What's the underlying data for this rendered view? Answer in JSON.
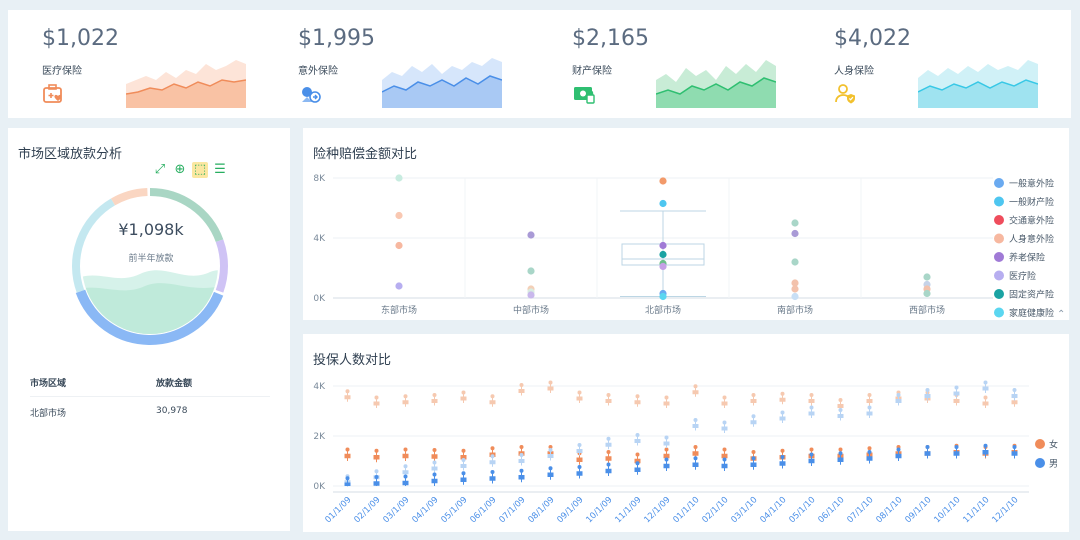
{
  "kpis": [
    {
      "value": "$1,022",
      "label": "医疗保险",
      "icon": "medical-kit-icon",
      "color": "#f08c5a"
    },
    {
      "value": "$1,995",
      "label": "意外保险",
      "icon": "accident-icon",
      "color": "#4a8fe8"
    },
    {
      "value": "$2,165",
      "label": "财产保险",
      "icon": "property-icon",
      "color": "#2fbf71"
    },
    {
      "value": "$4,022",
      "label": "人身保险",
      "icon": "person-shield-icon",
      "color": "#f2c12e"
    }
  ],
  "left_panel": {
    "title": "市场区域放款分析",
    "toolbar": [
      {
        "icon": "fullscreen-icon"
      },
      {
        "icon": "zoom-in-icon"
      },
      {
        "icon": "select-icon",
        "active": true
      },
      {
        "icon": "list-icon"
      }
    ],
    "donut_value": "¥1,098k",
    "donut_sub": "前半年放款",
    "donut_ratio": 0.56,
    "table": {
      "headers": [
        "市场区域",
        "放款金额"
      ],
      "rows": [
        [
          "北部市场",
          "30,978"
        ]
      ]
    }
  },
  "chart_data": [
    {
      "id": "claims",
      "type": "scatter",
      "title": "险种赔偿金额对比",
      "categories": [
        "东部市场",
        "中部市场",
        "北部市场",
        "南部市场",
        "西部市场"
      ],
      "ylim": [
        0,
        8000
      ],
      "yticks": [
        {
          "v": 0,
          "l": "0K"
        },
        {
          "v": 4000,
          "l": "4K"
        },
        {
          "v": 8000,
          "l": "8K"
        }
      ],
      "series": [
        {
          "name": "一般意外险",
          "color": "#6aaaf0"
        },
        {
          "name": "一般财产险",
          "color": "#4ec6f0"
        },
        {
          "name": "交通意外险",
          "color": "#ef4d5c"
        },
        {
          "name": "人身意外险",
          "color": "#f7b8a0"
        },
        {
          "name": "养老保险",
          "color": "#a07ad6"
        },
        {
          "name": "医疗险",
          "color": "#b7aef0"
        },
        {
          "name": "固定资产险",
          "color": "#1aa3a3"
        },
        {
          "name": "家庭健康险",
          "color": "#5bd6f0"
        }
      ],
      "points": [
        {
          "cat": 0,
          "y": 8000,
          "color": "#c8ece0"
        },
        {
          "cat": 0,
          "y": 5500,
          "color": "#f9c8b2"
        },
        {
          "cat": 0,
          "y": 3500,
          "color": "#f7b8a0"
        },
        {
          "cat": 0,
          "y": 800,
          "color": "#b7aef0"
        },
        {
          "cat": 1,
          "y": 4200,
          "color": "#a99ad6"
        },
        {
          "cat": 1,
          "y": 1800,
          "color": "#a9d6c8"
        },
        {
          "cat": 1,
          "y": 600,
          "color": "#f3d0b8"
        },
        {
          "cat": 1,
          "y": 400,
          "color": "#d8ece2"
        },
        {
          "cat": 1,
          "y": 200,
          "color": "#c9b8ec"
        },
        {
          "cat": 2,
          "y": 7800,
          "color": "#f29a6a"
        },
        {
          "cat": 2,
          "y": 6300,
          "color": "#4ec6f0"
        },
        {
          "cat": 2,
          "y": 3500,
          "color": "#a07ad6"
        },
        {
          "cat": 2,
          "y": 2900,
          "color": "#1aa3a3"
        },
        {
          "cat": 2,
          "y": 2300,
          "color": "#6dbf8c"
        },
        {
          "cat": 2,
          "y": 2100,
          "color": "#c6a0e6"
        },
        {
          "cat": 2,
          "y": 300,
          "color": "#6aaaf0"
        },
        {
          "cat": 2,
          "y": 100,
          "color": "#5bd6f0"
        },
        {
          "cat": 3,
          "y": 5000,
          "color": "#a9d6c8"
        },
        {
          "cat": 3,
          "y": 4300,
          "color": "#a99ad6"
        },
        {
          "cat": 3,
          "y": 2400,
          "color": "#a9d6c8"
        },
        {
          "cat": 3,
          "y": 1000,
          "color": "#f3c2ac"
        },
        {
          "cat": 3,
          "y": 600,
          "color": "#f3c2ac"
        },
        {
          "cat": 3,
          "y": 100,
          "color": "#c8dff5"
        },
        {
          "cat": 4,
          "y": 1400,
          "color": "#a9d6c8"
        },
        {
          "cat": 4,
          "y": 900,
          "color": "#c6d3e8"
        },
        {
          "cat": 4,
          "y": 600,
          "color": "#f3c2ac"
        },
        {
          "cat": 4,
          "y": 300,
          "color": "#a9d6c8"
        }
      ],
      "box": {
        "cat": 2,
        "min": 100,
        "q1": 2200,
        "median": 2600,
        "q3": 3600,
        "max": 5800
      },
      "legend_position": "right"
    },
    {
      "id": "insured",
      "type": "box",
      "title": "投保人数对比",
      "categories": [
        "01/1/09",
        "02/1/09",
        "03/1/09",
        "04/1/09",
        "05/1/09",
        "06/1/09",
        "07/1/09",
        "08/1/09",
        "09/1/09",
        "10/1/09",
        "11/1/09",
        "12/1/09",
        "01/1/10",
        "02/1/10",
        "03/1/10",
        "04/1/10",
        "05/1/10",
        "06/1/10",
        "07/1/10",
        "08/1/10",
        "09/1/10",
        "10/1/10",
        "11/1/10",
        "12/1/10"
      ],
      "ylim": [
        0,
        4000
      ],
      "yticks": [
        {
          "v": 0,
          "l": "0K"
        },
        {
          "v": 2000,
          "l": "2K"
        },
        {
          "v": 4000,
          "l": "4K"
        }
      ],
      "series": [
        {
          "name": "女",
          "color": "#f08c5a",
          "light": "#f6c9b0",
          "values": [
            1200,
            1150,
            1200,
            1180,
            1150,
            1250,
            1300,
            1300,
            1050,
            1100,
            1000,
            1200,
            1300,
            1200,
            1100,
            1150,
            1200,
            1200,
            1250,
            1300,
            1300,
            1350,
            1300,
            1350
          ],
          "upper": [
            3550,
            3300,
            3350,
            3400,
            3500,
            3350,
            3800,
            3900,
            3500,
            3400,
            3350,
            3300,
            3750,
            3300,
            3400,
            3450,
            3400,
            3200,
            3400,
            3500,
            3500,
            3400,
            3300,
            3350
          ]
        },
        {
          "name": "男",
          "color": "#4a8fe8",
          "light": "#b8d4f4",
          "values": [
            50,
            100,
            120,
            200,
            250,
            300,
            350,
            450,
            500,
            600,
            650,
            800,
            850,
            800,
            850,
            900,
            1000,
            1050,
            1100,
            1200,
            1300,
            1300,
            1350,
            1300
          ],
          "upper": [
            150,
            350,
            550,
            700,
            800,
            950,
            1000,
            1200,
            1400,
            1650,
            1800,
            1700,
            2400,
            2300,
            2550,
            2700,
            2900,
            2800,
            2900,
            3400,
            3600,
            3700,
            3900,
            3600
          ]
        }
      ],
      "legend_position": "right"
    }
  ]
}
